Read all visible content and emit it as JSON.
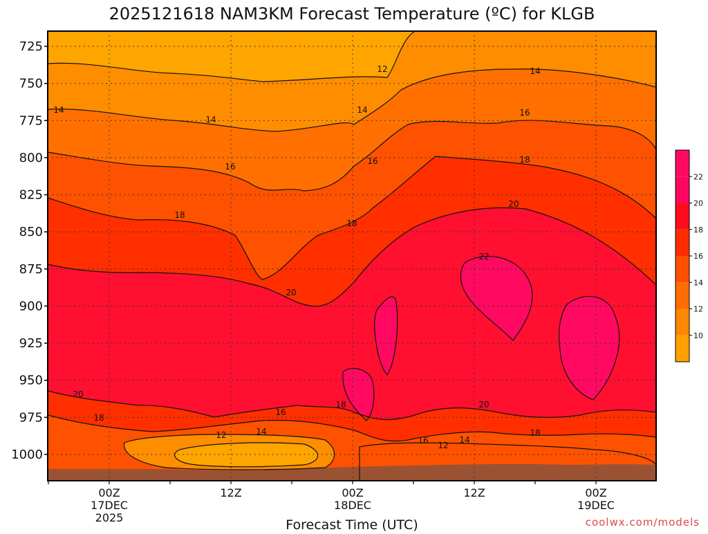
{
  "chart_data": {
    "type": "heatmap",
    "title": "2025121618 NAM3KM Forecast Temperature (ºC) for KLGB",
    "xlabel": "Forecast Time (UTC)",
    "ylabel": "",
    "y_ticks": [
      "725",
      "750",
      "775",
      "800",
      "825",
      "850",
      "875",
      "900",
      "925",
      "950",
      "975",
      "1000"
    ],
    "x_ticks": [
      {
        "line1": "00Z",
        "line2": "17DEC",
        "line3": "2025"
      },
      {
        "line1": "12Z",
        "line2": "",
        "line3": ""
      },
      {
        "line1": "00Z",
        "line2": "18DEC",
        "line3": ""
      },
      {
        "line1": "12Z",
        "line2": "",
        "line3": ""
      },
      {
        "line1": "00Z",
        "line2": "19DEC",
        "line3": ""
      }
    ],
    "colorbar": {
      "labels": [
        "10",
        "12",
        "14",
        "16",
        "18",
        "20",
        "22"
      ],
      "colors": [
        "#ffa000",
        "#ff8800",
        "#ff6c00",
        "#ff4e00",
        "#ff2c00",
        "#ff0b1e",
        "#ff0760"
      ]
    },
    "band_colors": [
      "#ffa500",
      "#ff8d00",
      "#ff7000",
      "#ff5200",
      "#ff2f00",
      "#ff1030",
      "#ff0a60"
    ],
    "ground_color": "#9b5232",
    "contour_labels": [
      {
        "text": "12"
      },
      {
        "text": "14"
      },
      {
        "text": "14"
      },
      {
        "text": "14"
      },
      {
        "text": "14"
      },
      {
        "text": "16"
      },
      {
        "text": "16"
      },
      {
        "text": "16"
      },
      {
        "text": "18"
      },
      {
        "text": "18"
      },
      {
        "text": "18"
      },
      {
        "text": "20"
      },
      {
        "text": "20"
      },
      {
        "text": "22"
      },
      {
        "text": "20"
      },
      {
        "text": "20"
      },
      {
        "text": "18"
      },
      {
        "text": "18"
      },
      {
        "text": "16"
      },
      {
        "text": "12"
      },
      {
        "text": "14"
      },
      {
        "text": "16"
      },
      {
        "text": "12"
      },
      {
        "text": "14"
      },
      {
        "text": "18"
      }
    ],
    "credit": "coolwx.com/models"
  }
}
